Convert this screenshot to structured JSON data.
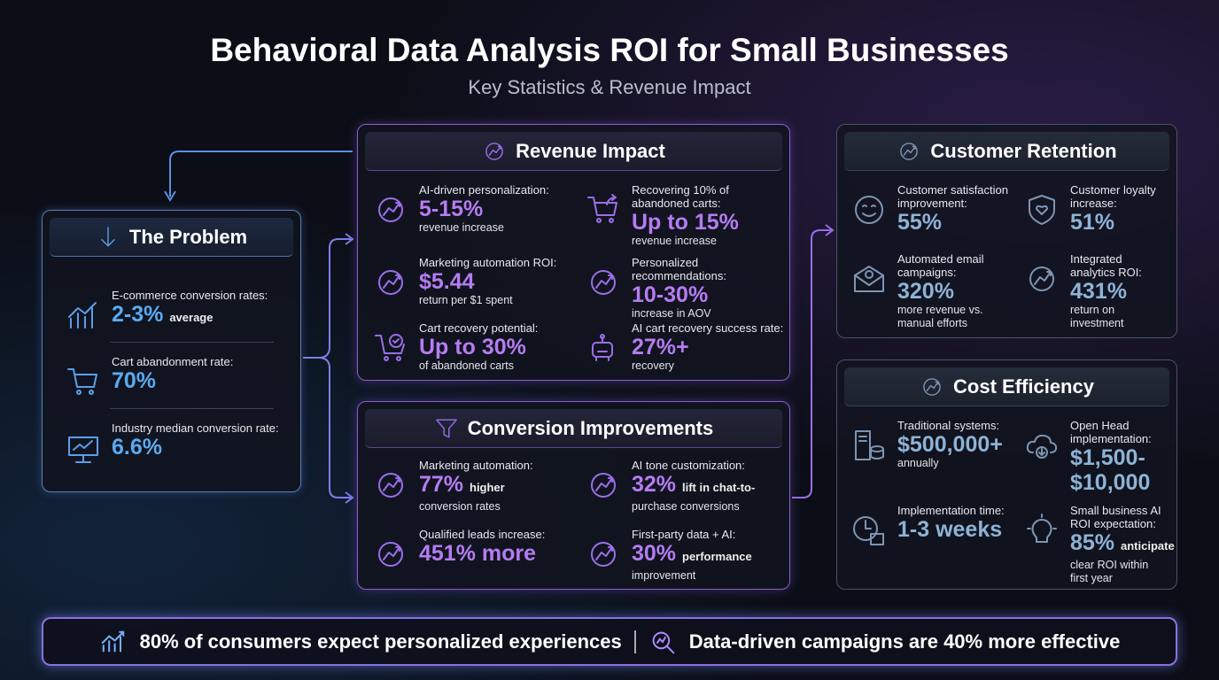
{
  "title": "Behavioral Data Analysis ROI for Small Businesses",
  "subtitle": "Key Statistics & Revenue Impact",
  "colors": {
    "purple": "#b57cf2",
    "blue": "#5aaaf2",
    "steel": "#8db3d6",
    "purple_icon": "#9a6ee8",
    "blue_icon": "#5c9ee8",
    "steel_icon": "#7d95b3"
  },
  "sections": {
    "problem": {
      "title": "The Problem",
      "icon": "arrow-down-icon",
      "items": [
        {
          "icon": "bar-chart-icon",
          "label": "E-commerce conversion rates:",
          "value": "2-3%",
          "inline": "average",
          "sub": ""
        },
        {
          "icon": "cart-icon",
          "label": "Cart abandonment rate:",
          "value": "70%",
          "inline": "",
          "sub": ""
        },
        {
          "icon": "presentation-chart-icon",
          "label": "Industry median conversion rate:",
          "value": "6.6%",
          "inline": "",
          "sub": ""
        }
      ]
    },
    "revenue": {
      "title": "Revenue Impact",
      "icon": "money-growth-icon",
      "items": [
        {
          "icon": "brain-head-icon",
          "label": "AI-driven personalization:",
          "value": "5-15%",
          "inline": "",
          "sub": "revenue increase"
        },
        {
          "icon": "cart-return-icon",
          "label": "Recovering 10% of\nabandoned carts:",
          "value": "Up to 15%",
          "inline": "",
          "sub": "revenue increase"
        },
        {
          "icon": "money-bag-hand-icon",
          "label": "Marketing automation ROI:",
          "value": "$5.44",
          "inline": "",
          "sub": "return per $1 spent"
        },
        {
          "icon": "shopping-bag-arrow-icon",
          "label": "Personalized recommendations:",
          "value": "10-30%",
          "inline": "",
          "sub": "increase in AOV"
        },
        {
          "icon": "cart-check-icon",
          "label": "Cart recovery potential:",
          "value": "Up to 30%",
          "inline": "",
          "sub": "of abandoned carts"
        },
        {
          "icon": "robot-icon",
          "label": "AI cart recovery success rate:",
          "value": "27%+",
          "inline": "",
          "sub": "recovery"
        }
      ]
    },
    "conversion": {
      "title": "Conversion Improvements",
      "icon": "funnel-icon",
      "items": [
        {
          "icon": "gear-arrow-icon",
          "label": "Marketing automation:",
          "value": "77%",
          "inline": "higher",
          "sub": "conversion rates"
        },
        {
          "icon": "chat-cart-icon",
          "label": "AI tone customization:",
          "value": "32%",
          "inline": "lift in chat-to-",
          "sub": "purchase conversions"
        },
        {
          "icon": "search-user-icon",
          "label": "Qualified leads increase:",
          "value": "451% more",
          "inline": "",
          "sub": ""
        },
        {
          "icon": "database-upload-icon",
          "label": "First-party data + AI:",
          "value": "30%",
          "inline": "performance",
          "sub": "improvement"
        }
      ]
    },
    "retention": {
      "title": "Customer Retention",
      "icon": "heart-hand-icon",
      "items": [
        {
          "icon": "smiley-icon",
          "label": "Customer satisfaction\nimprovement:",
          "value": "55%",
          "inline": "",
          "sub": ""
        },
        {
          "icon": "shield-heart-icon",
          "label": "Customer loyalty\nincrease:",
          "value": "51%",
          "inline": "",
          "sub": ""
        },
        {
          "icon": "email-icon",
          "label": "Automated email\ncampaigns:",
          "value": "320%",
          "inline": "",
          "sub": "more revenue vs.\nmanual efforts"
        },
        {
          "icon": "analytics-dashboard-icon",
          "label": "Integrated\nanalytics ROI:",
          "value": "431%",
          "inline": "",
          "sub": "return on\ninvestment"
        }
      ]
    },
    "cost": {
      "title": "Cost Efficiency",
      "icon": "dollar-hand-icon",
      "items": [
        {
          "icon": "server-database-icon",
          "label": "Traditional systems:",
          "value": "$500,000+",
          "inline": "",
          "sub": "annually"
        },
        {
          "icon": "cloud-download-icon",
          "label": "Open Head\nimplementation:",
          "value": "$1,500-\n$10,000",
          "inline": "",
          "sub": ""
        },
        {
          "icon": "clock-calendar-icon",
          "label": "Implementation time:",
          "value": "1-3 weeks",
          "inline": "",
          "sub": ""
        },
        {
          "icon": "lightbulb-icon",
          "label": "Small business AI\nROI expectation:",
          "value": "85%",
          "inline": "anticipate",
          "sub": "clear ROI within\nfirst year"
        }
      ]
    }
  },
  "footer": {
    "left": "80% of consumers expect personalized experiences",
    "left_icon": "bar-chart-icon",
    "right": "Data-driven campaigns are 40% more effective",
    "right_icon": "search-analytics-icon"
  }
}
